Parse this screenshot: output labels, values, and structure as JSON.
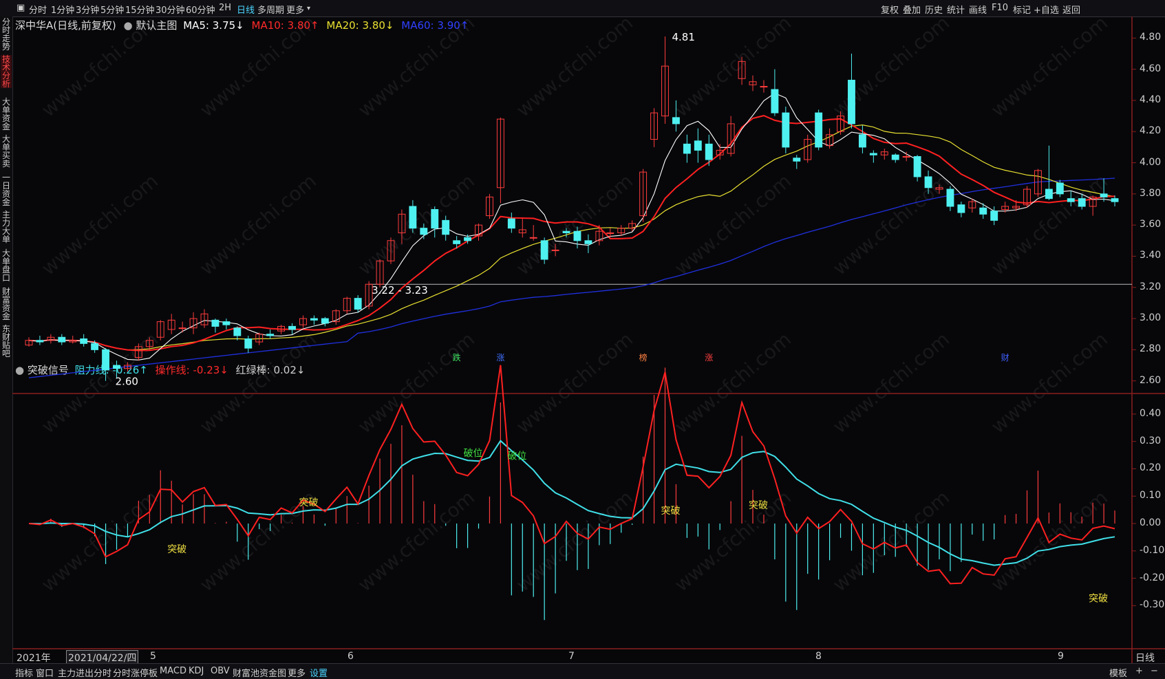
{
  "toolbar": {
    "timeframes": [
      "分时",
      "1分钟",
      "3分钟",
      "5分钟",
      "15分钟",
      "30分钟",
      "60分钟",
      "2H",
      "日线",
      "多周期",
      "更多"
    ],
    "active_timeframe": "日线",
    "right_buttons": [
      "复权",
      "叠加",
      "历史",
      "统计",
      "画线",
      "F10",
      "+自选",
      "返回"
    ],
    "markup": "标记"
  },
  "sidebar": {
    "items": [
      "分时走势",
      "技术分析",
      "大单资金",
      "大单买卖",
      "一日资金",
      "主力大单",
      "大单盘口",
      "财富资金",
      "东财贴吧"
    ],
    "active": "技术分析"
  },
  "main_legend": {
    "stock": "深中华A(日线,前复权)",
    "main_chart": "默认主图",
    "ma5": "MA5: 3.75↓",
    "ma10": "MA10: 3.80↑",
    "ma20": "MA20: 3.80↓",
    "ma60": "MA60: 3.90↑"
  },
  "indicator_legend": {
    "name": "突破信号",
    "resist": "阻力线: -0.26↑",
    "operate": "操作线: -0.23↓",
    "hist": "红绿棒: 0.02↓"
  },
  "colors": {
    "bg": "#07070a",
    "up": "#ff3c3c",
    "down": "#4ef0f0",
    "ma5": "#ffffff",
    "ma10": "#ff2020",
    "ma20": "#e8e030",
    "ma60": "#2030e0",
    "resist": "#40e0e8",
    "operate": "#ff2020"
  },
  "chart_data": [
    {
      "type": "candlestick",
      "yticks": [
        "4.80",
        "4.60",
        "4.40",
        "4.20",
        "4.00",
        "3.80",
        "3.60",
        "3.40",
        "3.20",
        "3.00",
        "2.80",
        "2.60"
      ],
      "ylim": [
        2.55,
        4.85
      ],
      "annotations": {
        "high": "4.81",
        "low": "2.60",
        "gap": "3.22 - 3.23"
      },
      "events": [
        "跌",
        "涨",
        "榜",
        "涨",
        "财"
      ],
      "candles": [
        [
          2.83,
          2.86,
          2.88,
          2.82
        ],
        [
          2.86,
          2.85,
          2.89,
          2.83
        ],
        [
          2.86,
          2.88,
          2.9,
          2.84
        ],
        [
          2.88,
          2.85,
          2.9,
          2.83
        ],
        [
          2.85,
          2.86,
          2.89,
          2.84
        ],
        [
          2.87,
          2.84,
          2.9,
          2.82
        ],
        [
          2.84,
          2.8,
          2.86,
          2.78
        ],
        [
          2.8,
          2.67,
          2.81,
          2.6
        ],
        [
          2.7,
          2.68,
          2.73,
          2.62
        ],
        [
          2.68,
          2.7,
          2.72,
          2.66
        ],
        [
          2.75,
          2.82,
          2.84,
          2.73
        ],
        [
          2.82,
          2.86,
          2.88,
          2.8
        ],
        [
          2.88,
          2.98,
          2.99,
          2.86
        ],
        [
          2.93,
          2.99,
          3.03,
          2.9
        ],
        [
          2.94,
          2.94,
          2.98,
          2.91
        ],
        [
          2.94,
          3.0,
          3.04,
          2.9
        ],
        [
          2.96,
          3.03,
          3.06,
          2.94
        ],
        [
          2.99,
          2.95,
          3.0,
          2.91
        ],
        [
          2.98,
          2.96,
          3.0,
          2.93
        ],
        [
          2.94,
          2.89,
          2.95,
          2.86
        ],
        [
          2.87,
          2.81,
          2.89,
          2.78
        ],
        [
          2.85,
          2.9,
          2.91,
          2.83
        ],
        [
          2.9,
          2.89,
          2.93,
          2.87
        ],
        [
          2.92,
          2.95,
          2.96,
          2.9
        ],
        [
          2.95,
          2.93,
          2.97,
          2.9
        ],
        [
          2.96,
          3.0,
          3.02,
          2.94
        ],
        [
          3.0,
          2.99,
          3.02,
          2.96
        ],
        [
          3.0,
          2.97,
          3.01,
          2.95
        ],
        [
          2.98,
          3.05,
          3.06,
          2.96
        ],
        [
          3.05,
          3.13,
          3.14,
          3.03
        ],
        [
          3.13,
          3.06,
          3.15,
          3.04
        ],
        [
          3.08,
          3.22,
          3.24,
          3.06
        ],
        [
          3.22,
          3.37,
          3.38,
          3.2
        ],
        [
          3.37,
          3.5,
          3.52,
          3.35
        ],
        [
          3.55,
          3.67,
          3.7,
          3.48
        ],
        [
          3.72,
          3.58,
          3.76,
          3.55
        ],
        [
          3.58,
          3.54,
          3.61,
          3.51
        ],
        [
          3.7,
          3.58,
          3.72,
          3.52
        ],
        [
          3.63,
          3.54,
          3.66,
          3.5
        ],
        [
          3.5,
          3.48,
          3.53,
          3.45
        ],
        [
          3.52,
          3.5,
          3.54,
          3.48
        ],
        [
          3.53,
          3.6,
          3.61,
          3.5
        ],
        [
          3.66,
          3.78,
          3.8,
          3.64
        ],
        [
          3.84,
          4.28,
          4.29,
          3.74
        ],
        [
          3.64,
          3.58,
          3.68,
          3.55
        ],
        [
          3.55,
          3.57,
          3.64,
          3.52
        ],
        [
          3.52,
          3.52,
          3.6,
          3.5
        ],
        [
          3.5,
          3.38,
          3.52,
          3.35
        ],
        [
          3.44,
          3.44,
          3.48,
          3.4
        ],
        [
          3.56,
          3.55,
          3.58,
          3.52
        ],
        [
          3.56,
          3.5,
          3.59,
          3.45
        ],
        [
          3.5,
          3.48,
          3.54,
          3.42
        ],
        [
          3.5,
          3.56,
          3.6,
          3.47
        ],
        [
          3.55,
          3.55,
          3.58,
          3.52
        ],
        [
          3.55,
          3.58,
          3.6,
          3.53
        ],
        [
          3.58,
          3.61,
          3.63,
          3.56
        ],
        [
          3.66,
          3.94,
          3.96,
          3.62
        ],
        [
          4.15,
          4.32,
          4.35,
          4.1
        ],
        [
          4.3,
          4.62,
          4.81,
          4.25
        ],
        [
          4.29,
          4.25,
          4.4,
          4.2
        ],
        [
          4.12,
          4.06,
          4.18,
          4.0
        ],
        [
          4.14,
          4.08,
          4.22,
          4.0
        ],
        [
          4.12,
          4.02,
          4.18,
          3.98
        ],
        [
          4.05,
          4.08,
          4.12,
          4.02
        ],
        [
          4.06,
          4.25,
          4.3,
          4.04
        ],
        [
          4.54,
          4.65,
          4.68,
          4.5
        ],
        [
          4.5,
          4.52,
          4.56,
          4.46
        ],
        [
          4.49,
          4.49,
          4.53,
          4.45
        ],
        [
          4.47,
          4.32,
          4.6,
          4.3
        ],
        [
          4.32,
          4.1,
          4.36,
          4.06
        ],
        [
          4.03,
          4.01,
          4.05,
          3.96
        ],
        [
          4.02,
          4.15,
          4.18,
          4.0
        ],
        [
          4.32,
          4.1,
          4.34,
          4.08
        ],
        [
          4.11,
          4.18,
          4.22,
          4.09
        ],
        [
          4.2,
          4.3,
          4.33,
          4.18
        ],
        [
          4.53,
          4.25,
          4.7,
          4.22
        ],
        [
          4.18,
          4.1,
          4.24,
          4.06
        ],
        [
          4.06,
          4.05,
          4.08,
          4.0
        ],
        [
          4.05,
          4.07,
          4.09,
          4.02
        ],
        [
          4.05,
          4.02,
          4.06,
          4.0
        ],
        [
          4.04,
          4.04,
          4.07,
          4.01
        ],
        [
          4.04,
          3.91,
          4.05,
          3.88
        ],
        [
          3.91,
          3.84,
          3.95,
          3.8
        ],
        [
          3.83,
          3.84,
          3.86,
          3.8
        ],
        [
          3.83,
          3.72,
          3.85,
          3.69
        ],
        [
          3.73,
          3.68,
          3.75,
          3.65
        ],
        [
          3.71,
          3.75,
          3.77,
          3.68
        ],
        [
          3.71,
          3.67,
          3.74,
          3.64
        ],
        [
          3.69,
          3.63,
          3.72,
          3.6
        ],
        [
          3.7,
          3.72,
          3.75,
          3.68
        ],
        [
          3.71,
          3.72,
          3.76,
          3.69
        ],
        [
          3.73,
          3.83,
          3.85,
          3.71
        ],
        [
          3.8,
          3.95,
          3.96,
          3.78
        ],
        [
          3.83,
          3.77,
          4.11,
          3.76
        ],
        [
          3.87,
          3.8,
          3.89,
          3.78
        ],
        [
          3.77,
          3.75,
          3.82,
          3.72
        ],
        [
          3.77,
          3.72,
          3.8,
          3.7
        ],
        [
          3.72,
          3.78,
          3.79,
          3.66
        ],
        [
          3.8,
          3.78,
          3.9,
          3.75
        ],
        [
          3.77,
          3.75,
          3.79,
          3.72
        ]
      ]
    },
    {
      "type": "line",
      "series_names": [
        "阻力线",
        "操作线",
        "红绿棒"
      ],
      "yticks": [
        "0.40",
        "0.30",
        "0.20",
        "0.10",
        "0.00",
        "-0.10",
        "-0.20",
        "-0.30"
      ],
      "ylim": [
        -0.45,
        0.46
      ],
      "signals": [
        {
          "label": "突破",
          "i": 13,
          "v": -0.09
        },
        {
          "label": "突破",
          "i": 25,
          "v": 0.08
        },
        {
          "label": "破位",
          "i": 40,
          "v": 0.26
        },
        {
          "label": "破位",
          "i": 44,
          "v": 0.25
        },
        {
          "label": "突破",
          "i": 58,
          "v": 0.05
        },
        {
          "label": "突破",
          "i": 66,
          "v": 0.07
        },
        {
          "label": "突破",
          "i": 97,
          "v": -0.27
        }
      ]
    }
  ],
  "x_axis": {
    "year": "2021年",
    "cursor_date": "2021/04/22/四",
    "months": [
      "5",
      "6",
      "7",
      "8",
      "9"
    ],
    "period": "日线"
  },
  "bottombar": {
    "tabs": [
      "指标",
      "窗口",
      "主力进出分时",
      "分时涨停板",
      "MACD",
      "KDJ",
      "OBV",
      "财富池资金图",
      "更多",
      "设置"
    ],
    "active": "设置",
    "right": "模板",
    "plus": "+",
    "minus": "−"
  },
  "watermark": "www.cfchi.com"
}
